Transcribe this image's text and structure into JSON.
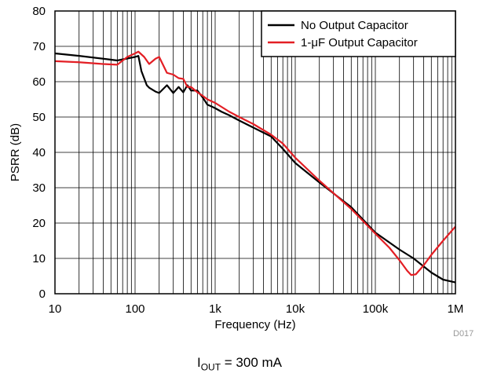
{
  "chart_data": {
    "type": "line",
    "xscale": "log",
    "xlabel": "Frequency (Hz)",
    "ylabel": "PSRR (dB)",
    "xlim": [
      10,
      1000000
    ],
    "ylim": [
      0,
      80
    ],
    "grid": true,
    "legend_position": "top-right",
    "x_ticks": [
      {
        "value": 10,
        "label": "10"
      },
      {
        "value": 100,
        "label": "100"
      },
      {
        "value": 1000,
        "label": "1k"
      },
      {
        "value": 10000,
        "label": "10k"
      },
      {
        "value": 100000,
        "label": "100k"
      },
      {
        "value": 1000000,
        "label": "1M"
      }
    ],
    "y_ticks": [
      0,
      10,
      20,
      30,
      40,
      50,
      60,
      70,
      80
    ],
    "series": [
      {
        "name": "No Output Capacitor",
        "color": "#000000",
        "points": [
          [
            10,
            68
          ],
          [
            20,
            67.3
          ],
          [
            40,
            66.5
          ],
          [
            60,
            66
          ],
          [
            100,
            67
          ],
          [
            110,
            67.3
          ],
          [
            120,
            63
          ],
          [
            140,
            59
          ],
          [
            150,
            58.3
          ],
          [
            180,
            57.2
          ],
          [
            200,
            56.8
          ],
          [
            250,
            59
          ],
          [
            300,
            56.8
          ],
          [
            350,
            58.5
          ],
          [
            400,
            57
          ],
          [
            450,
            59
          ],
          [
            500,
            57.5
          ],
          [
            600,
            57.5
          ],
          [
            700,
            55.5
          ],
          [
            800,
            53.5
          ],
          [
            900,
            53
          ],
          [
            1000,
            52.5
          ],
          [
            1200,
            51.5
          ],
          [
            1500,
            50.5
          ],
          [
            2000,
            49
          ],
          [
            3000,
            47
          ],
          [
            5000,
            44.5
          ],
          [
            7000,
            41
          ],
          [
            10000,
            37
          ],
          [
            20000,
            31.5
          ],
          [
            50000,
            24.5
          ],
          [
            100000,
            17.3
          ],
          [
            200000,
            12.5
          ],
          [
            300000,
            10
          ],
          [
            500000,
            6
          ],
          [
            700000,
            4
          ],
          [
            1000000,
            3.2
          ]
        ]
      },
      {
        "name": "1-μF Output Capacitor",
        "color": "#e31e24",
        "points": [
          [
            10,
            65.8
          ],
          [
            20,
            65.5
          ],
          [
            40,
            65
          ],
          [
            60,
            64.8
          ],
          [
            80,
            67
          ],
          [
            100,
            68
          ],
          [
            110,
            68.5
          ],
          [
            130,
            67
          ],
          [
            150,
            65
          ],
          [
            180,
            66.5
          ],
          [
            200,
            67
          ],
          [
            250,
            62.5
          ],
          [
            300,
            62
          ],
          [
            350,
            61
          ],
          [
            400,
            60.8
          ],
          [
            450,
            58.5
          ],
          [
            500,
            58.5
          ],
          [
            600,
            57
          ],
          [
            700,
            56
          ],
          [
            800,
            55
          ],
          [
            1000,
            54
          ],
          [
            1500,
            51.5
          ],
          [
            2000,
            50
          ],
          [
            3000,
            48
          ],
          [
            5000,
            45
          ],
          [
            7000,
            42.5
          ],
          [
            10000,
            38.5
          ],
          [
            20000,
            32
          ],
          [
            50000,
            24
          ],
          [
            100000,
            17
          ],
          [
            150000,
            13
          ],
          [
            200000,
            9.5
          ],
          [
            250000,
            6.5
          ],
          [
            280000,
            5.3
          ],
          [
            320000,
            5.5
          ],
          [
            400000,
            8
          ],
          [
            500000,
            11
          ],
          [
            700000,
            15
          ],
          [
            1000000,
            19
          ]
        ]
      }
    ],
    "watermark": "D017",
    "caption": {
      "main": "I",
      "sub": "OUT",
      "rest": " = 300 mA"
    }
  }
}
